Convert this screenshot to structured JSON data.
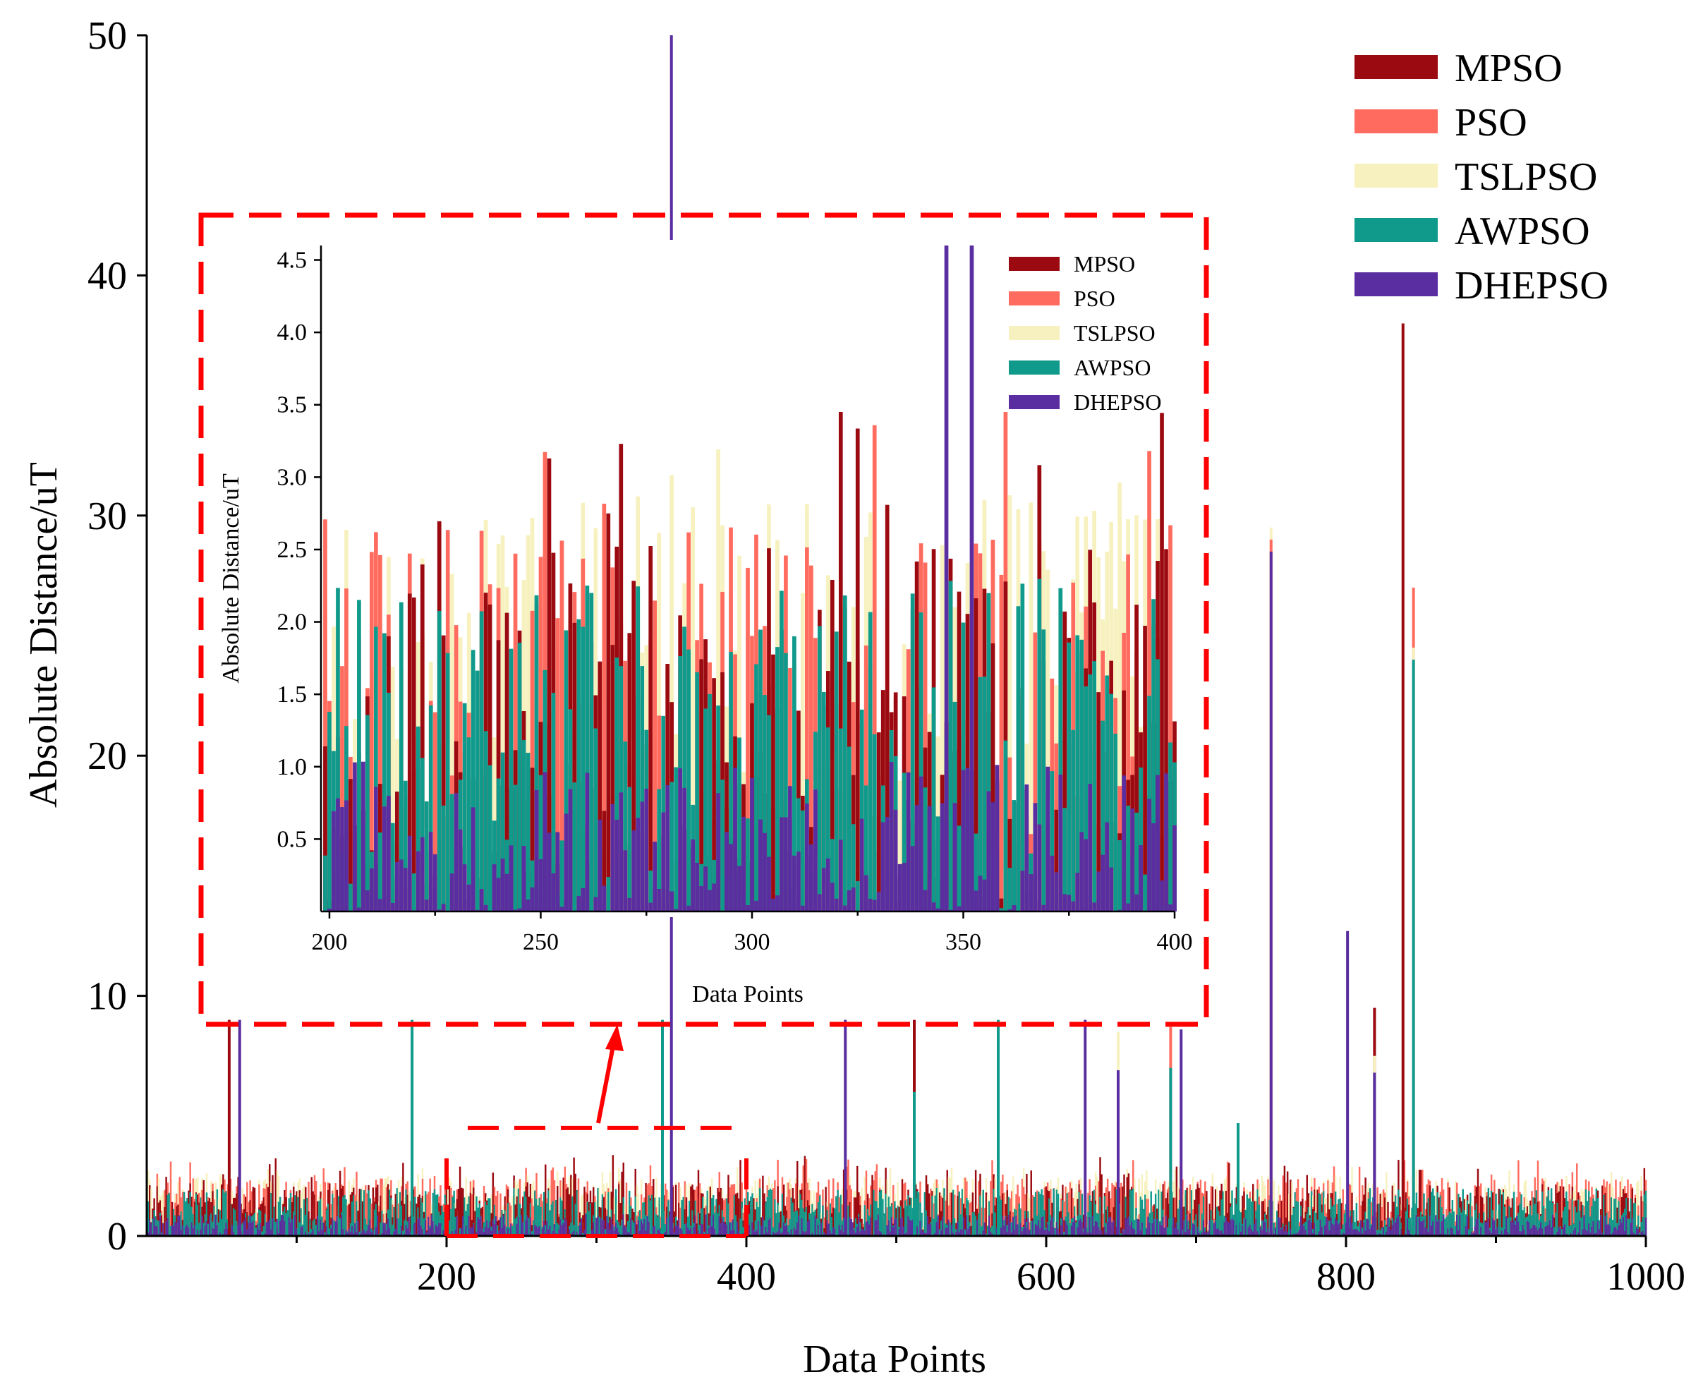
{
  "chart_data": {
    "type": "bar",
    "main": {
      "xlabel": "Data Points",
      "ylabel": "Absolute Distance/uT",
      "xlim": [
        0,
        1000
      ],
      "ylim": [
        0,
        50
      ],
      "xticks": [
        200,
        400,
        600,
        800,
        1000
      ],
      "yticks": [
        0,
        10,
        20,
        30,
        40,
        50
      ],
      "points_per_series": 1000,
      "typical_range": [
        0,
        3.5
      ],
      "spikes": [
        {
          "x": 55,
          "series": "MPSO",
          "value": 9.0
        },
        {
          "x": 62,
          "series": "DHEPSO",
          "value": 9.0
        },
        {
          "x": 177,
          "series": "AWPSO",
          "value": 9.0
        },
        {
          "x": 344,
          "series": "AWPSO",
          "value": 9.0
        },
        {
          "x": 350,
          "series": "DHEPSO",
          "value": 50.0
        },
        {
          "x": 466,
          "series": "DHEPSO",
          "value": 9.0
        },
        {
          "x": 512,
          "series": "MPSO",
          "value": 9.0
        },
        {
          "x": 512,
          "series": "AWPSO",
          "value": 6.0
        },
        {
          "x": 568,
          "series": "AWPSO",
          "value": 9.0
        },
        {
          "x": 626,
          "series": "DHEPSO",
          "value": 9.0
        },
        {
          "x": 648,
          "series": "TSLPSO",
          "value": 8.5
        },
        {
          "x": 648,
          "series": "DHEPSO",
          "value": 6.9
        },
        {
          "x": 683,
          "series": "PSO",
          "value": 8.7
        },
        {
          "x": 683,
          "series": "AWPSO",
          "value": 7.0
        },
        {
          "x": 690,
          "series": "DHEPSO",
          "value": 8.6
        },
        {
          "x": 728,
          "series": "AWPSO",
          "value": 4.7
        },
        {
          "x": 750,
          "series": "TSLPSO",
          "value": 29.5
        },
        {
          "x": 750,
          "series": "PSO",
          "value": 29.0
        },
        {
          "x": 750,
          "series": "DHEPSO",
          "value": 28.5
        },
        {
          "x": 801,
          "series": "DHEPSO",
          "value": 12.7
        },
        {
          "x": 819,
          "series": "MPSO",
          "value": 9.5
        },
        {
          "x": 819,
          "series": "TSLPSO",
          "value": 7.5
        },
        {
          "x": 819,
          "series": "DHEPSO",
          "value": 6.8
        },
        {
          "x": 838,
          "series": "MPSO",
          "value": 38.0
        },
        {
          "x": 845,
          "series": "PSO",
          "value": 27.0
        },
        {
          "x": 845,
          "series": "TSLPSO",
          "value": 24.5
        },
        {
          "x": 845,
          "series": "AWPSO",
          "value": 24.0
        }
      ]
    },
    "inset": {
      "xlabel": "Data Points",
      "ylabel": "Absolute Distance/uT",
      "xlim": [
        198,
        400
      ],
      "ylim": [
        0,
        4.6
      ],
      "xticks": [
        200,
        250,
        300,
        350,
        400
      ],
      "yticks": [
        "0.5",
        "1.0",
        "1.5",
        "2.0",
        "2.5",
        "3.0",
        "3.5",
        "4.0",
        "4.5"
      ],
      "typical_range": [
        0,
        3.5
      ],
      "spikes": [
        {
          "x": 346,
          "series": "DHEPSO",
          "value": 4.6
        },
        {
          "x": 352,
          "series": "DHEPSO",
          "value": 4.6
        }
      ]
    },
    "series": [
      {
        "name": "MPSO",
        "color": "#9b0a10"
      },
      {
        "name": "PSO",
        "color": "#ff6b5e"
      },
      {
        "name": "TSLPSO",
        "color": "#f7f1bf"
      },
      {
        "name": "AWPSO",
        "color": "#0f9a8c"
      },
      {
        "name": "DHEPSO",
        "color": "#5a2ea0"
      }
    ],
    "legend_position": "top-right",
    "zoom_box": {
      "x_range": [
        200,
        400
      ],
      "y_range": [
        0,
        4.5
      ]
    },
    "zoom_line_color": "#ff0000"
  }
}
